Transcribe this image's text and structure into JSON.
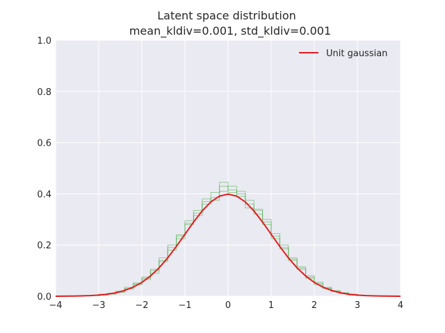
{
  "chart_data": {
    "type": "line",
    "title": "Latent space distribution",
    "subtitle": "mean_kldiv=0.001, std_kldiv=0.001",
    "xlabel": "",
    "ylabel": "",
    "xlim": [
      -4,
      4
    ],
    "ylim": [
      0,
      1.0
    ],
    "x_ticks": [
      "−4",
      "−3",
      "−2",
      "−1",
      "0",
      "1",
      "2",
      "3",
      "4"
    ],
    "y_ticks": [
      "0.0",
      "0.2",
      "0.4",
      "0.6",
      "0.8",
      "1.0"
    ],
    "grid": true,
    "legend_position": "top-right",
    "series": [
      {
        "name": "Unit gaussian",
        "kind": "line",
        "color": "#e41a1c",
        "x": [
          -4.0,
          -3.8,
          -3.6,
          -3.4,
          -3.2,
          -3.0,
          -2.8,
          -2.6,
          -2.4,
          -2.2,
          -2.0,
          -1.8,
          -1.6,
          -1.4,
          -1.2,
          -1.0,
          -0.8,
          -0.6,
          -0.4,
          -0.2,
          0.0,
          0.2,
          0.4,
          0.6,
          0.8,
          1.0,
          1.2,
          1.4,
          1.6,
          1.8,
          2.0,
          2.2,
          2.4,
          2.6,
          2.8,
          3.0,
          3.2,
          3.4,
          3.6,
          3.8,
          4.0
        ],
        "y": [
          0.0001,
          0.0003,
          0.0006,
          0.0012,
          0.0024,
          0.0044,
          0.0079,
          0.0136,
          0.0224,
          0.0355,
          0.054,
          0.079,
          0.1109,
          0.1497,
          0.1942,
          0.242,
          0.2897,
          0.3332,
          0.3683,
          0.391,
          0.3989,
          0.391,
          0.3683,
          0.3332,
          0.2897,
          0.242,
          0.1942,
          0.1497,
          0.1109,
          0.079,
          0.054,
          0.0355,
          0.0224,
          0.0136,
          0.0079,
          0.0044,
          0.0024,
          0.0012,
          0.0006,
          0.0003,
          0.0001
        ]
      },
      {
        "kind": "histogram",
        "color": "#4daf4a",
        "bin_edges": [
          -3.0,
          -2.8,
          -2.6,
          -2.4,
          -2.2,
          -2.0,
          -1.8,
          -1.6,
          -1.4,
          -1.2,
          -1.0,
          -0.8,
          -0.6,
          -0.4,
          -0.2,
          0.0,
          0.2,
          0.4,
          0.6,
          0.8,
          1.0,
          1.2,
          1.4,
          1.6,
          1.8,
          2.0,
          2.2,
          2.4,
          2.6,
          2.8,
          3.0
        ],
        "values": [
          0.006,
          0.01,
          0.018,
          0.03,
          0.048,
          0.07,
          0.105,
          0.14,
          0.19,
          0.235,
          0.285,
          0.325,
          0.37,
          0.405,
          0.43,
          0.415,
          0.4,
          0.36,
          0.335,
          0.29,
          0.235,
          0.19,
          0.145,
          0.11,
          0.075,
          0.05,
          0.032,
          0.02,
          0.012,
          0.006
        ]
      },
      {
        "kind": "histogram",
        "color": "#4daf4a",
        "bin_edges": [
          -3.0,
          -2.8,
          -2.6,
          -2.4,
          -2.2,
          -2.0,
          -1.8,
          -1.6,
          -1.4,
          -1.2,
          -1.0,
          -0.8,
          -0.6,
          -0.4,
          -0.2,
          0.0,
          0.2,
          0.4,
          0.6,
          0.8,
          1.0,
          1.2,
          1.4,
          1.6,
          1.8,
          2.0,
          2.2,
          2.4,
          2.6,
          2.8,
          3.0
        ],
        "values": [
          0.004,
          0.012,
          0.015,
          0.035,
          0.052,
          0.075,
          0.1,
          0.135,
          0.2,
          0.24,
          0.28,
          0.335,
          0.36,
          0.385,
          0.41,
          0.43,
          0.39,
          0.345,
          0.32,
          0.3,
          0.245,
          0.2,
          0.15,
          0.105,
          0.08,
          0.055,
          0.035,
          0.018,
          0.01,
          0.004
        ]
      },
      {
        "kind": "histogram",
        "color": "#4daf4a",
        "bin_edges": [
          -3.0,
          -2.8,
          -2.6,
          -2.4,
          -2.2,
          -2.0,
          -1.8,
          -1.6,
          -1.4,
          -1.2,
          -1.0,
          -0.8,
          -0.6,
          -0.4,
          -0.2,
          0.0,
          0.2,
          0.4,
          0.6,
          0.8,
          1.0,
          1.2,
          1.4,
          1.6,
          1.8,
          2.0,
          2.2,
          2.4,
          2.6,
          2.8,
          3.0
        ],
        "values": [
          0.008,
          0.008,
          0.02,
          0.028,
          0.045,
          0.065,
          0.09,
          0.15,
          0.18,
          0.225,
          0.295,
          0.315,
          0.38,
          0.375,
          0.445,
          0.405,
          0.41,
          0.375,
          0.34,
          0.28,
          0.225,
          0.185,
          0.14,
          0.115,
          0.07,
          0.045,
          0.03,
          0.022,
          0.014,
          0.008
        ]
      }
    ]
  }
}
